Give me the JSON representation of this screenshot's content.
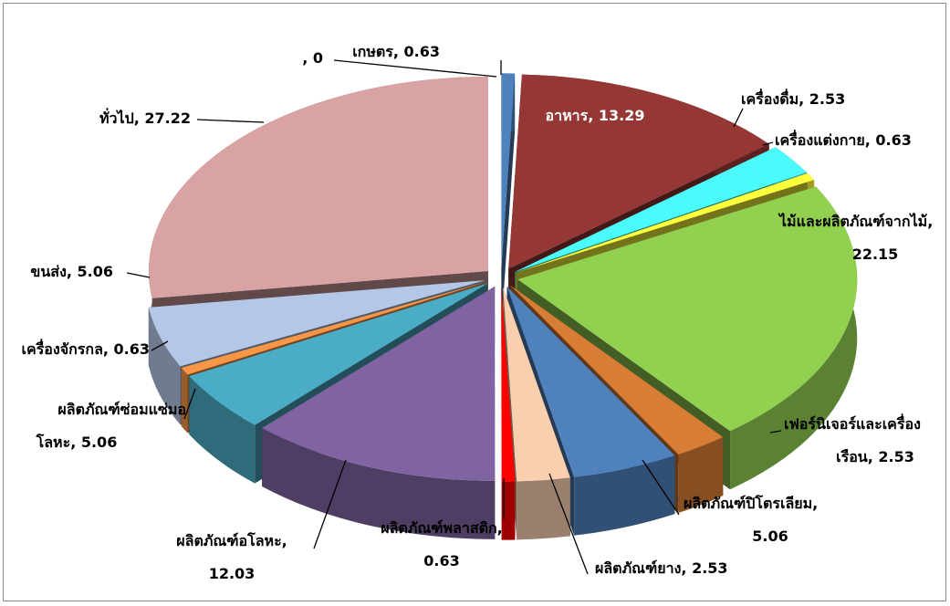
{
  "chart_data": {
    "type": "pie",
    "title": "",
    "categories": [
      "เกษตร",
      "อาหาร",
      "เครื่องดื่ม",
      "เครื่องแต่งกาย",
      "ไม้และผลิตภัณฑ์จากไม้",
      "เฟอร์นิเจอร์และเครื่องเรือน",
      "ผลิตภัณฑ์ปิโตรเลียม",
      "ผลิตภัณฑ์ยาง",
      "ผลิตภัณฑ์พลาสติก",
      "ผลิตภัณฑ์อโลหะ",
      "ผลิตภัณฑ์ซ่อมแซ่มอโลหะ",
      "เครื่องจักรกล",
      "ขนส่ง",
      "ทั่วไป",
      ""
    ],
    "values": [
      0.63,
      13.29,
      2.53,
      0.63,
      22.15,
      2.53,
      5.06,
      2.53,
      0.63,
      12.03,
      5.06,
      0.63,
      5.06,
      27.22,
      0
    ],
    "colors": [
      "#4F81BD",
      "#953735",
      "#4BFAFA",
      "#FFFF3C",
      "#92D050",
      "#D87D35",
      "#4F81BD",
      "#F9CFAE",
      "#FF0000",
      "#8064A2",
      "#4BACC6",
      "#F79646",
      "#B4C7E7",
      "#D9A3A3",
      "#4F81BD"
    ],
    "exploded": true,
    "legend": "none"
  },
  "labels": [
    [
      "เกษตร, 0.63"
    ],
    [
      "อาหาร, 13.29"
    ],
    [
      "เครื่องดื่ม, 2.53"
    ],
    [
      "เครื่องแต่งกาย, 0.63"
    ],
    [
      "ไม้และผลิตภัณฑ์จากไม้,",
      "22.15"
    ],
    [
      "เฟอร์นิเจอร์และเครื่อง",
      "เรือน, 2.53"
    ],
    [
      "ผลิตภัณฑ์ปิโตรเลียม,",
      "5.06"
    ],
    [
      "ผลิตภัณฑ์ยาง, 2.53"
    ],
    [
      "ผลิตภัณฑ์พลาสติก,",
      "0.63"
    ],
    [
      "ผลิตภัณฑ์อโลหะ,",
      "12.03"
    ],
    [
      "ผลิตภัณฑ์ซ่อมแซ่มอ",
      "โลหะ, 5.06"
    ],
    [
      "เครื่องจักรกล, 0.63"
    ],
    [
      "ขนส่ง, 5.06"
    ],
    [
      "ทั่วไป, 27.22"
    ],
    [
      ", 0"
    ]
  ]
}
